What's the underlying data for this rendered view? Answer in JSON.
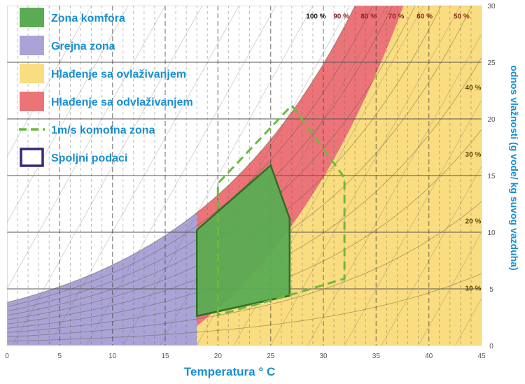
{
  "chart_data": {
    "type": "area",
    "title": "",
    "xlabel": "Temperatura ° C",
    "ylabel": "odnos vlažnosti (g vode/ kg suvog vazduha)",
    "xlim": [
      0,
      45
    ],
    "ylim": [
      0,
      30
    ],
    "x_ticks": [
      "0",
      "5",
      "10",
      "15",
      "20",
      "25",
      "30",
      "35",
      "40",
      "45"
    ],
    "y_ticks": [
      "0",
      "5",
      "10",
      "15",
      "20",
      "25",
      "30"
    ],
    "legend_position": "top-left",
    "legend": [
      {
        "key": "comfort",
        "label": "Zona komfora",
        "symbol": "swatch",
        "color": "#5aac52"
      },
      {
        "key": "heating",
        "label": "Grejna zona",
        "symbol": "swatch",
        "color": "#aaa4d6"
      },
      {
        "key": "humid_cool",
        "label": "Hlađenje sa ovlaživanjem",
        "symbol": "swatch",
        "color": "#fadd80"
      },
      {
        "key": "dehumid_cool",
        "label": "Hlađenje sa odvlaživanjem",
        "symbol": "swatch",
        "color": "#ec7478"
      },
      {
        "key": "air_zone",
        "label": "1m/s komofna zona",
        "symbol": "dashed-line",
        "color": "#6cba3c"
      },
      {
        "key": "outdoor",
        "label": "Spoljni podaci",
        "symbol": "outline-box",
        "color": "#332a7a"
      }
    ],
    "rh_labels": [
      {
        "text": "100 %",
        "rh": 100,
        "x": 29.3,
        "y": 29.6,
        "color": "#1a1a1a"
      },
      {
        "text": "90 %",
        "rh": 90,
        "x": 31.7,
        "y": 29.6,
        "color": "#8a2727"
      },
      {
        "text": "80 %",
        "rh": 80,
        "x": 34.3,
        "y": 29.6,
        "color": "#8a2727"
      },
      {
        "text": "70 %",
        "rh": 70,
        "x": 36.9,
        "y": 29.6,
        "color": "#8a2727"
      },
      {
        "text": "60 %",
        "rh": 60,
        "x": 39.6,
        "y": 29.6,
        "color": "#8a2727"
      },
      {
        "text": "50 %",
        "rh": 50,
        "x": 43.1,
        "y": 29.6,
        "color": "#8a2727"
      },
      {
        "text": "40 %",
        "rh": 40,
        "x": 44.2,
        "y": 23.3,
        "color": "#5c4a10"
      },
      {
        "text": "30 %",
        "rh": 30,
        "x": 44.2,
        "y": 17.4,
        "color": "#5c4a10"
      },
      {
        "text": "20 %",
        "rh": 20,
        "x": 44.2,
        "y": 11.5,
        "color": "#5c4a10"
      },
      {
        "text": "10 %",
        "rh": 10,
        "x": 44.2,
        "y": 5.6,
        "color": "#5c4a10"
      }
    ],
    "zones": {
      "heating": {
        "x_range": [
          0,
          18
        ],
        "color": "#aaa4d6",
        "upper": "saturation"
      },
      "humid_cool": {
        "x_range": [
          18,
          45
        ],
        "color": "#fadd80",
        "upper": "saturation"
      },
      "dehumid_cool": {
        "x_range": [
          18,
          45
        ],
        "color": "#ec7478",
        "band_below_saturation_gkg": 10
      }
    },
    "comfort_zone": {
      "color": "#5aac52",
      "points": [
        [
          18,
          2.6
        ],
        [
          18,
          10.2
        ],
        [
          25,
          15.9
        ],
        [
          26.8,
          11.2
        ],
        [
          26.8,
          4.4
        ]
      ]
    },
    "air_zone": {
      "color": "#6cba3c",
      "points": [
        [
          20,
          2.7
        ],
        [
          20,
          14.3
        ],
        [
          27,
          21.2
        ],
        [
          32,
          14.8
        ],
        [
          32,
          5.9
        ],
        [
          27,
          4.5
        ]
      ]
    }
  }
}
